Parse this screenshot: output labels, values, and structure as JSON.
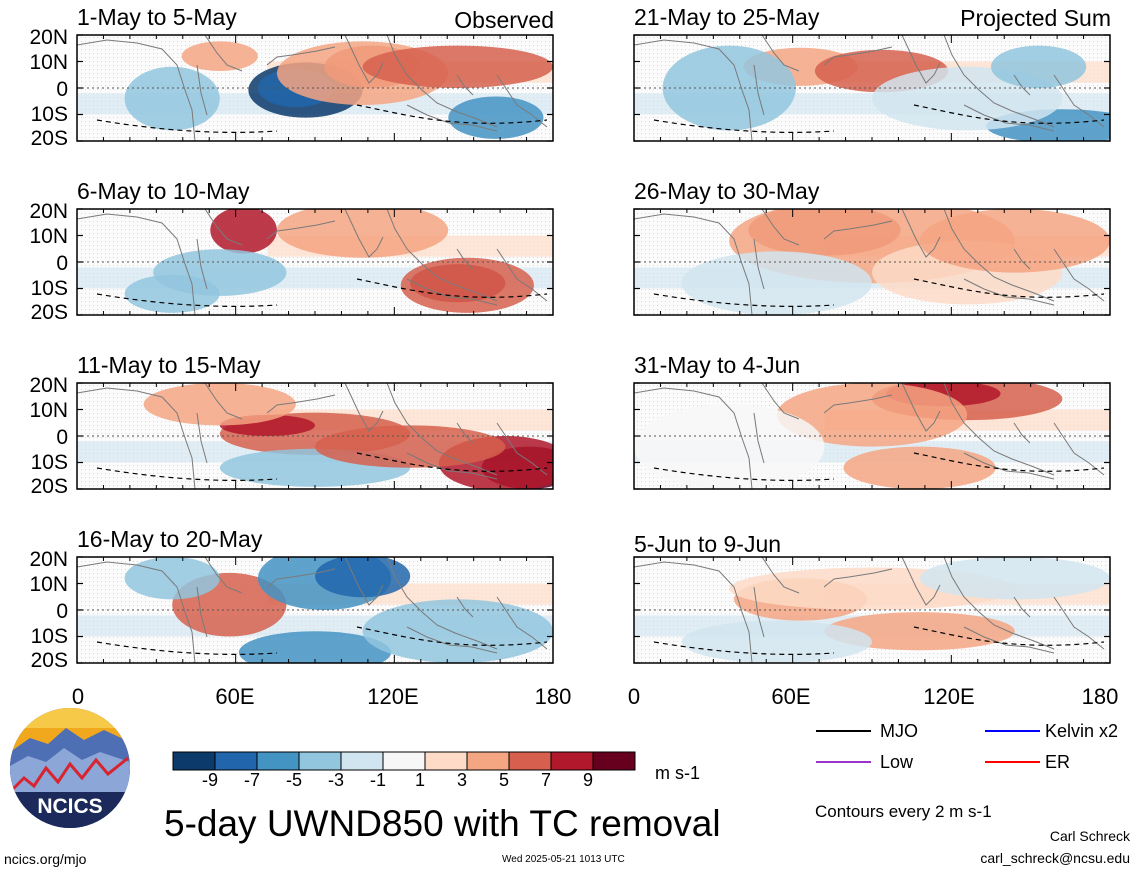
{
  "chart_data": {
    "type": "heatmap",
    "title": "5-day UWND850 with TC removal",
    "units": "m s-1",
    "contour_note": "Contours every 2 m s-1",
    "column_labels": {
      "left": "Observed",
      "right": "Projected Sum"
    },
    "x_ticks": [
      "0",
      "60E",
      "120E",
      "180"
    ],
    "y_ticks": [
      "20N",
      "10N",
      "0",
      "10S",
      "20S"
    ],
    "xlim": [
      0,
      180
    ],
    "ylim": [
      -20,
      20
    ],
    "colorbar": {
      "ticks": [
        "-9",
        "-7",
        "-5",
        "-3",
        "-1",
        "1",
        "3",
        "5",
        "7",
        "9"
      ],
      "colors": [
        "#0b3a6b",
        "#2166ac",
        "#4393c3",
        "#92c5de",
        "#d1e5f0",
        "#f7f7f7",
        "#fddbc7",
        "#f4a582",
        "#d6604d",
        "#b2182b",
        "#67001f"
      ]
    },
    "legend": [
      {
        "label": "MJO",
        "color": "#000000"
      },
      {
        "label": "Kelvin x2",
        "color": "#0000ff"
      },
      {
        "label": "Low",
        "color": "#9933cc"
      },
      {
        "label": "ER",
        "color": "#ff0000"
      }
    ],
    "panels": [
      {
        "title": "1-May to 5-May",
        "group": "observed"
      },
      {
        "title": "21-May to 25-May",
        "group": "projected"
      },
      {
        "title": "6-May to 10-May",
        "group": "observed"
      },
      {
        "title": "26-May to 30-May",
        "group": "projected"
      },
      {
        "title": "11-May to 15-May",
        "group": "observed"
      },
      {
        "title": "31-May to 4-Jun",
        "group": "projected"
      },
      {
        "title": "16-May to 20-May",
        "group": "observed"
      },
      {
        "title": "5-Jun to 9-Jun",
        "group": "projected"
      }
    ]
  },
  "footer": {
    "logo_text": "NCICS",
    "site": "ncics.org/mjo",
    "timestamp": "Wed 2025-05-21 1013 UTC",
    "author": "Carl Schreck",
    "email": "carl_schreck@ncsu.edu"
  }
}
